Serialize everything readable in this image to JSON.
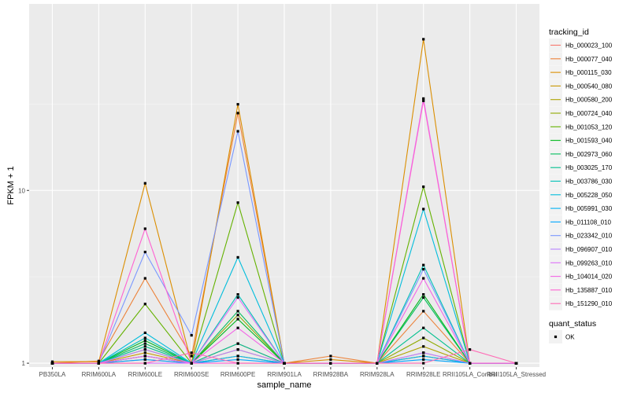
{
  "chart_data": {
    "type": "line",
    "xlabel": "sample_name",
    "ylabel": "FPKM + 1",
    "y_scale": "log10",
    "ylim": [
      0.95,
      120
    ],
    "y_ticks": [
      1,
      10
    ],
    "grid": true,
    "legend_position": "right",
    "categories": [
      "PB350LA",
      "RRIM600LA",
      "RRIM600LE",
      "RRIM600SE",
      "RRIM600PE",
      "RRIM901LA",
      "RRIM928BA",
      "RRIM928LA",
      "RRIM928LE",
      "RRII105LA_Control",
      "RRII105LA_Stressed"
    ],
    "legend_title": "tracking_id",
    "series": [
      {
        "name": "Hb_000023_100",
        "color": "#F8766D",
        "values": [
          1.0,
          1.0,
          1.05,
          1.0,
          1.3,
          1.0,
          1.0,
          1.0,
          1.15,
          1.0,
          1.0
        ]
      },
      {
        "name": "Hb_000077_040",
        "color": "#EC8239",
        "values": [
          1.0,
          1.03,
          3.1,
          1.1,
          28.0,
          1.0,
          1.1,
          1.0,
          2.0,
          1.0,
          1.0
        ]
      },
      {
        "name": "Hb_000115_030",
        "color": "#DB8E00",
        "values": [
          1.02,
          1.02,
          11.0,
          1.0,
          31.5,
          1.0,
          1.05,
          1.0,
          75.0,
          1.0,
          1.0
        ]
      },
      {
        "name": "Hb_000540_080",
        "color": "#C79800",
        "values": [
          1.0,
          1.0,
          1.15,
          1.0,
          1.2,
          1.0,
          1.0,
          1.0,
          1.1,
          1.0,
          1.0
        ]
      },
      {
        "name": "Hb_000580_200",
        "color": "#AEA200",
        "values": [
          1.0,
          1.0,
          1.1,
          1.0,
          1.1,
          1.0,
          1.0,
          1.0,
          1.25,
          1.0,
          1.0
        ]
      },
      {
        "name": "Hb_000724_040",
        "color": "#8FAA00",
        "values": [
          1.0,
          1.0,
          1.2,
          1.0,
          1.9,
          1.0,
          1.0,
          1.0,
          1.4,
          1.0,
          1.0
        ]
      },
      {
        "name": "Hb_001053_120",
        "color": "#64B200",
        "values": [
          1.0,
          1.0,
          2.2,
          1.0,
          8.5,
          1.0,
          1.0,
          1.0,
          10.5,
          1.0,
          1.0
        ]
      },
      {
        "name": "Hb_001593_040",
        "color": "#00B81B",
        "values": [
          1.0,
          1.0,
          1.35,
          1.0,
          1.8,
          1.0,
          1.0,
          1.0,
          2.5,
          1.0,
          1.0
        ]
      },
      {
        "name": "Hb_002973_060",
        "color": "#00BD5C",
        "values": [
          1.0,
          1.0,
          1.3,
          1.0,
          2.0,
          1.0,
          1.0,
          1.0,
          2.4,
          1.0,
          1.0
        ]
      },
      {
        "name": "Hb_003025_170",
        "color": "#00C08E",
        "values": [
          1.0,
          1.0,
          1.25,
          1.0,
          1.3,
          1.0,
          1.0,
          1.0,
          1.6,
          1.0,
          1.0
        ]
      },
      {
        "name": "Hb_003786_030",
        "color": "#00C1B7",
        "values": [
          1.0,
          1.0,
          1.4,
          1.0,
          2.5,
          1.0,
          1.0,
          1.0,
          3.7,
          1.0,
          1.0
        ]
      },
      {
        "name": "Hb_005228_050",
        "color": "#00BDDC",
        "values": [
          1.0,
          1.0,
          1.5,
          1.0,
          4.1,
          1.0,
          1.0,
          1.0,
          7.8,
          1.0,
          1.0
        ]
      },
      {
        "name": "Hb_005991_030",
        "color": "#00B2F3",
        "values": [
          1.0,
          1.0,
          1.1,
          1.0,
          1.1,
          1.0,
          1.0,
          1.0,
          1.1,
          1.0,
          1.0
        ]
      },
      {
        "name": "Hb_011108_010",
        "color": "#00A6FF",
        "values": [
          1.0,
          1.0,
          1.05,
          1.0,
          1.05,
          1.0,
          1.0,
          1.0,
          1.05,
          1.0,
          1.0
        ]
      },
      {
        "name": "Hb_023342_010",
        "color": "#7997FF",
        "values": [
          1.0,
          1.0,
          4.4,
          1.45,
          22.0,
          1.0,
          1.0,
          1.0,
          3.5,
          1.0,
          1.0
        ]
      },
      {
        "name": "Hb_096907_010",
        "color": "#B983FF",
        "values": [
          1.0,
          1.0,
          1.2,
          1.0,
          1.2,
          1.0,
          1.0,
          1.0,
          1.15,
          1.0,
          1.0
        ]
      },
      {
        "name": "Hb_099263_010",
        "color": "#DE71F9",
        "values": [
          1.0,
          1.0,
          1.0,
          1.0,
          2.4,
          1.0,
          1.0,
          1.0,
          34.0,
          1.0,
          1.0
        ]
      },
      {
        "name": "Hb_104014_020",
        "color": "#F365E6",
        "values": [
          1.0,
          1.0,
          1.1,
          1.0,
          1.6,
          1.0,
          1.0,
          1.0,
          3.1,
          1.0,
          1.0
        ]
      },
      {
        "name": "Hb_135887_010",
        "color": "#FF62D2",
        "values": [
          1.0,
          1.0,
          6.0,
          1.0,
          1.0,
          1.0,
          1.0,
          1.0,
          33.0,
          1.0,
          1.0
        ]
      },
      {
        "name": "Hb_151290_010",
        "color": "#FF6AB5",
        "values": [
          1.0,
          1.0,
          1.0,
          1.15,
          1.0,
          1.0,
          1.0,
          1.0,
          1.0,
          1.2,
          1.0
        ]
      }
    ],
    "shape_legend_title": "quant_status",
    "shape_legend_item": "OK"
  }
}
